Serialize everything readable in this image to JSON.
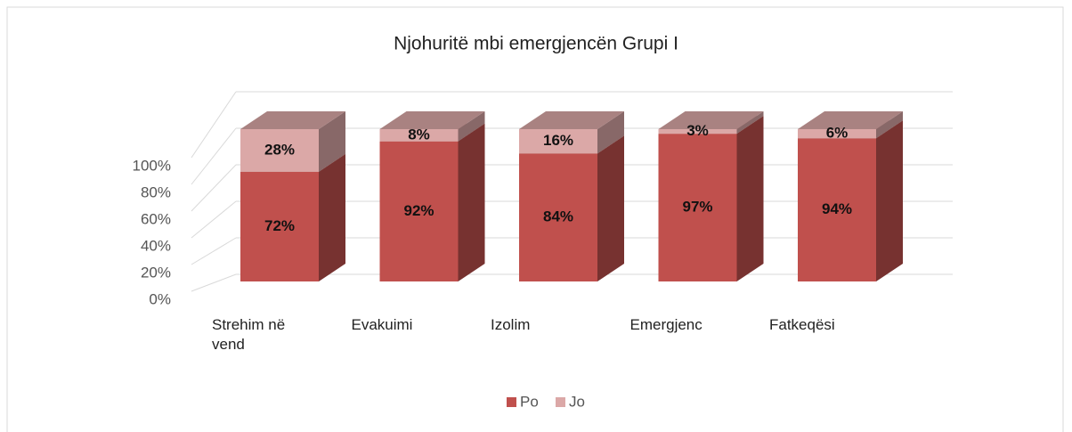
{
  "chart_data": {
    "type": "bar3d_stacked",
    "title": "Njohuritë mbi emergjencën Grupi I",
    "categories": [
      "Strehim në vend",
      "Evakuimi",
      "Izolim",
      "Emergjenc",
      "Fatkeqësi"
    ],
    "series": [
      {
        "name": "Po",
        "color": "#c0504d",
        "values": [
          72,
          92,
          84,
          97,
          94
        ],
        "value_labels": [
          "72%",
          "92%",
          "84%",
          "97%",
          "94%"
        ]
      },
      {
        "name": "Jo",
        "color": "#dba8a7",
        "values": [
          28,
          8,
          16,
          3,
          6
        ],
        "value_labels": [
          "28%",
          "8%",
          "16%",
          "3%",
          "6%"
        ]
      }
    ],
    "ylim": [
      0,
      100
    ],
    "yticks": [
      {
        "value": 0,
        "label": "0%"
      },
      {
        "value": 20,
        "label": "20%"
      },
      {
        "value": 40,
        "label": "40%"
      },
      {
        "value": 60,
        "label": "60%"
      },
      {
        "value": 80,
        "label": "80%"
      },
      {
        "value": 100,
        "label": "100%"
      }
    ],
    "grid": true,
    "legend": "bottom"
  }
}
